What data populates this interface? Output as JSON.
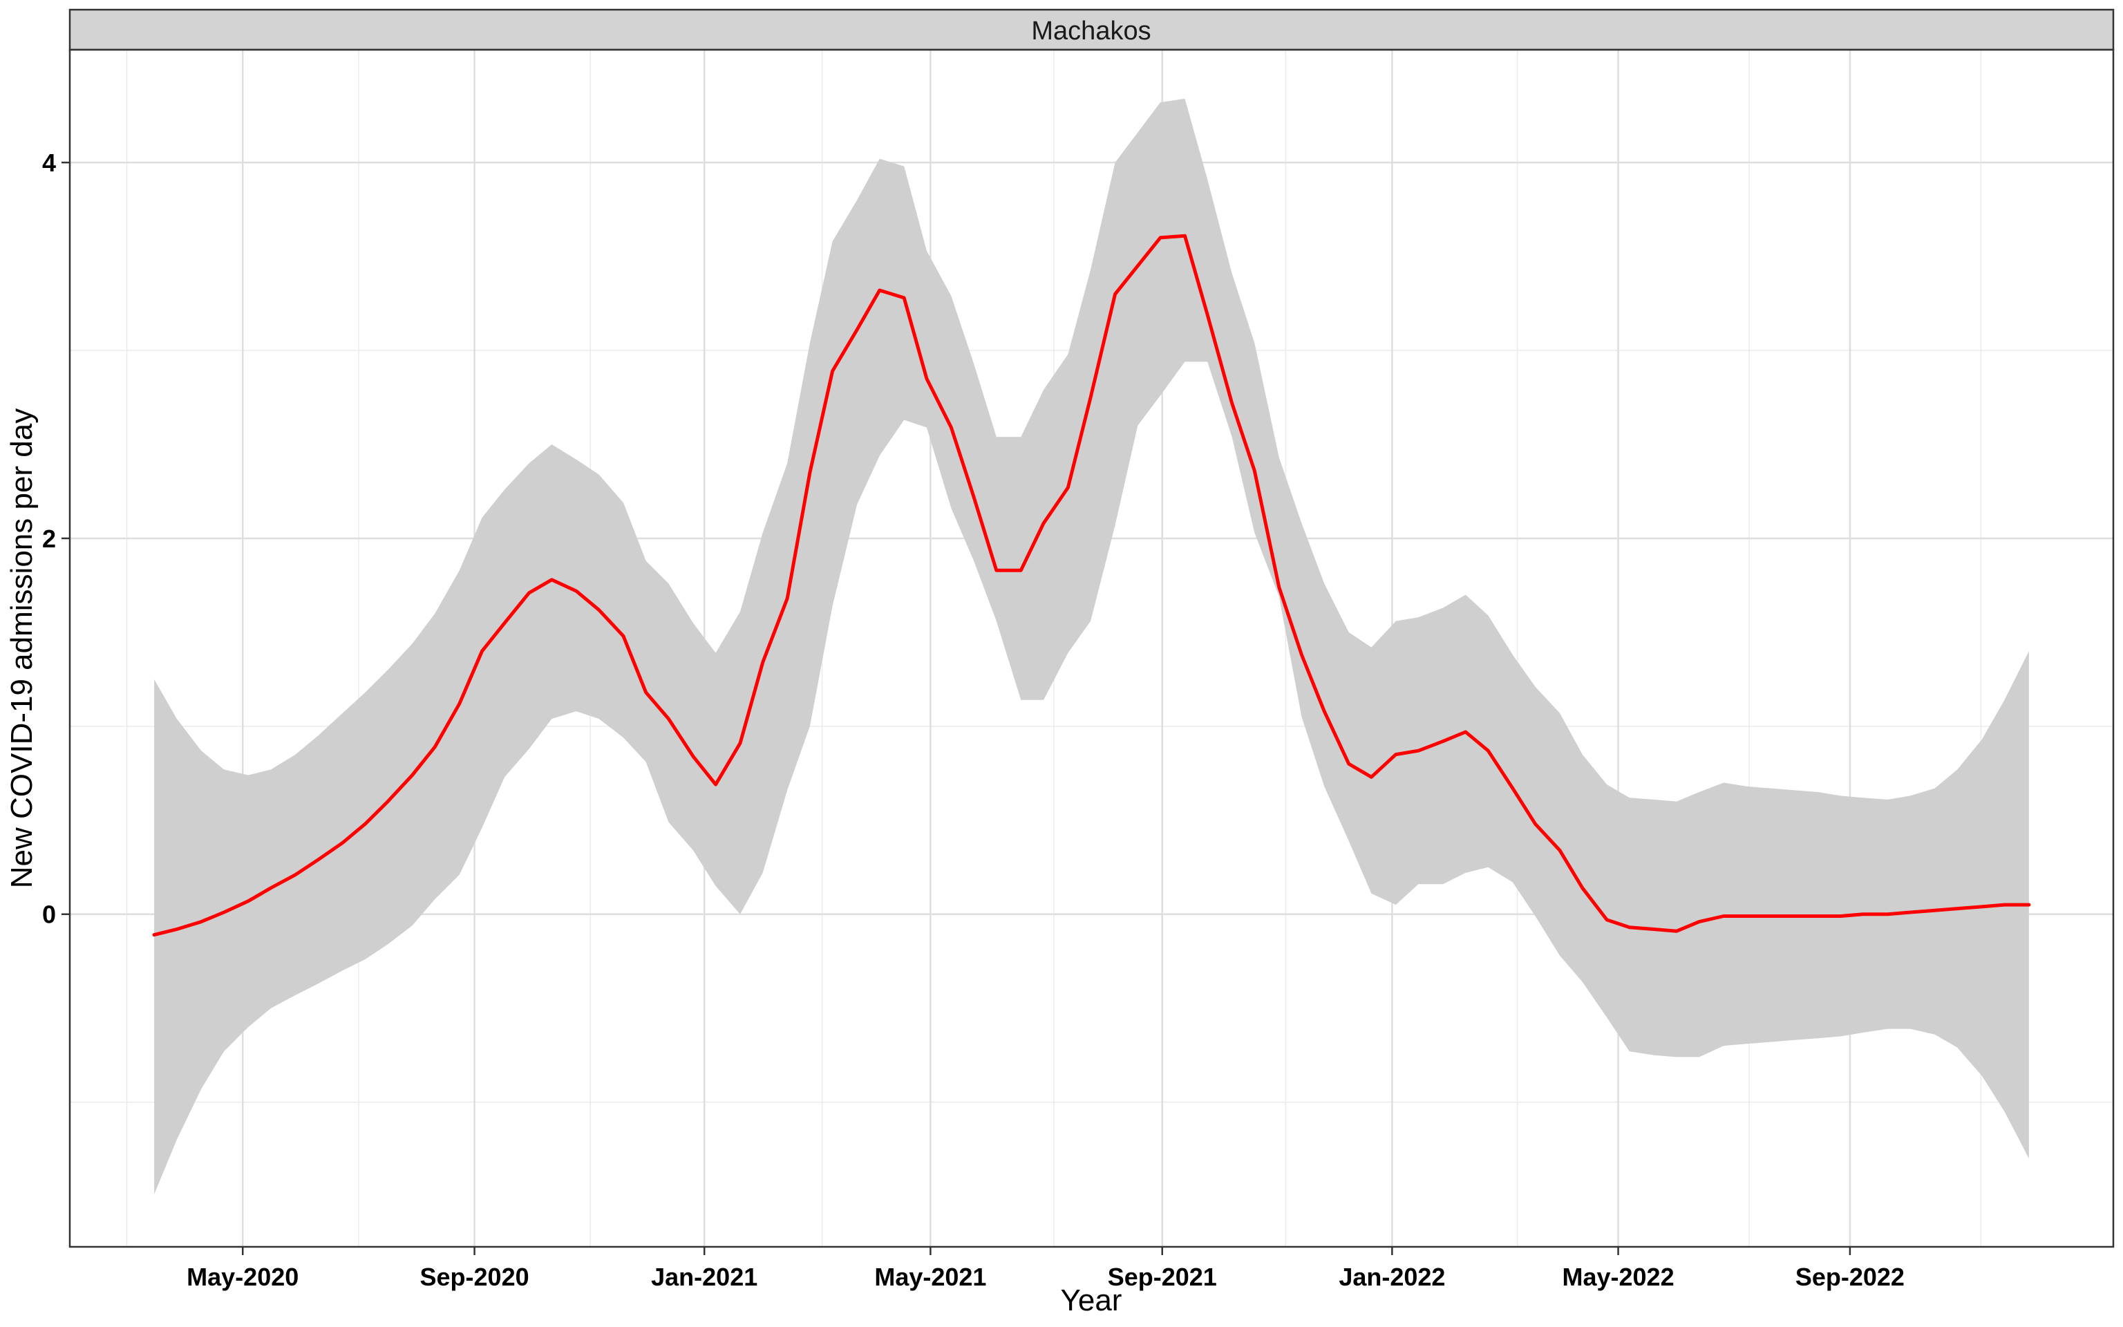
{
  "chart_data": {
    "type": "line",
    "facet_label": "Machakos",
    "xlabel": "Year",
    "ylabel": "New COVID-19 admissions per day",
    "x_ticks": [
      "May-2020",
      "Sep-2020",
      "Jan-2021",
      "May-2021",
      "Sep-2021",
      "Jan-2022",
      "May-2022",
      "Sep-2022"
    ],
    "y_ticks": [
      0,
      2,
      4
    ],
    "ylim": [
      -1.77,
      4.6
    ],
    "grid": true,
    "series": [
      {
        "color": "#ff0000",
        "x": [
          "2020-03-15",
          "2020-03-27",
          "2020-04-09",
          "2020-04-21",
          "2020-05-04",
          "2020-05-16",
          "2020-05-29",
          "2020-06-10",
          "2020-06-23",
          "2020-07-05",
          "2020-07-17",
          "2020-07-30",
          "2020-08-11",
          "2020-08-24",
          "2020-09-05",
          "2020-09-17",
          "2020-09-30",
          "2020-10-12",
          "2020-10-25",
          "2020-11-06",
          "2020-11-19",
          "2020-12-01",
          "2020-12-13",
          "2020-12-26",
          "2021-01-07",
          "2021-01-20",
          "2021-02-01",
          "2021-02-14",
          "2021-02-26",
          "2021-03-10",
          "2021-03-23",
          "2021-04-04",
          "2021-04-17",
          "2021-04-29",
          "2021-05-12",
          "2021-05-24",
          "2021-06-05",
          "2021-06-18",
          "2021-06-30",
          "2021-07-13",
          "2021-07-25",
          "2021-08-07",
          "2021-08-19",
          "2021-08-31",
          "2021-09-13",
          "2021-09-25",
          "2021-10-08",
          "2021-10-20",
          "2021-11-02",
          "2021-11-14",
          "2021-11-26",
          "2021-12-09",
          "2021-12-21",
          "2022-01-03",
          "2022-01-15",
          "2022-01-28",
          "2022-02-09",
          "2022-02-21",
          "2022-03-06",
          "2022-03-18",
          "2022-03-31",
          "2022-04-12",
          "2022-04-25",
          "2022-05-07",
          "2022-05-20",
          "2022-06-01",
          "2022-06-13",
          "2022-06-26",
          "2022-07-08",
          "2022-07-21",
          "2022-08-02",
          "2022-08-15",
          "2022-08-27",
          "2022-09-08",
          "2022-09-21",
          "2022-10-03",
          "2022-10-16",
          "2022-10-28",
          "2022-11-10",
          "2022-11-22",
          "2022-12-05"
        ],
        "y": [
          -0.11,
          -0.08,
          -0.04,
          0.01,
          0.07,
          0.14,
          0.21,
          0.29,
          0.38,
          0.48,
          0.6,
          0.74,
          0.89,
          1.12,
          1.4,
          1.55,
          1.71,
          1.78,
          1.72,
          1.62,
          1.48,
          1.18,
          1.04,
          0.84,
          0.69,
          0.91,
          1.34,
          1.68,
          2.35,
          2.89,
          3.11,
          3.32,
          3.28,
          2.85,
          2.59,
          2.22,
          1.83,
          1.83,
          2.08,
          2.27,
          2.75,
          3.3,
          3.45,
          3.6,
          3.61,
          3.19,
          2.72,
          2.36,
          1.74,
          1.38,
          1.08,
          0.8,
          0.73,
          0.85,
          0.87,
          0.92,
          0.97,
          0.87,
          0.67,
          0.48,
          0.34,
          0.14,
          -0.03,
          -0.07,
          -0.08,
          -0.09,
          -0.04,
          -0.01,
          -0.01,
          -0.01,
          -0.01,
          -0.01,
          -0.01,
          0.0,
          0.0,
          0.01,
          0.02,
          0.03,
          0.04,
          0.05,
          0.05
        ],
        "lower": [
          -1.49,
          -1.2,
          -0.93,
          -0.73,
          -0.6,
          -0.5,
          -0.43,
          -0.37,
          -0.3,
          -0.24,
          -0.16,
          -0.06,
          0.08,
          0.21,
          0.46,
          0.73,
          0.88,
          1.04,
          1.08,
          1.04,
          0.94,
          0.81,
          0.49,
          0.34,
          0.15,
          0.0,
          0.22,
          0.66,
          1.0,
          1.64,
          2.18,
          2.44,
          2.63,
          2.59,
          2.16,
          1.88,
          1.56,
          1.14,
          1.14,
          1.39,
          1.56,
          2.07,
          2.6,
          2.76,
          2.94,
          2.94,
          2.54,
          2.03,
          1.69,
          1.05,
          0.68,
          0.39,
          0.11,
          0.05,
          0.16,
          0.16,
          0.22,
          0.25,
          0.17,
          -0.01,
          -0.22,
          -0.36,
          -0.55,
          -0.73,
          -0.75,
          -0.76,
          -0.76,
          -0.7,
          -0.69,
          -0.68,
          -0.67,
          -0.66,
          -0.65,
          -0.63,
          -0.61,
          -0.61,
          -0.64,
          -0.71,
          -0.86,
          -1.05,
          -1.3
        ],
        "upper": [
          1.25,
          1.04,
          0.87,
          0.77,
          0.74,
          0.77,
          0.85,
          0.95,
          1.07,
          1.18,
          1.3,
          1.44,
          1.6,
          1.83,
          2.11,
          2.26,
          2.4,
          2.5,
          2.42,
          2.34,
          2.19,
          1.88,
          1.76,
          1.55,
          1.39,
          1.61,
          2.03,
          2.4,
          3.04,
          3.58,
          3.8,
          4.02,
          3.98,
          3.53,
          3.29,
          2.93,
          2.54,
          2.54,
          2.79,
          2.98,
          3.43,
          4.0,
          4.16,
          4.32,
          4.34,
          3.91,
          3.41,
          3.04,
          2.43,
          2.08,
          1.76,
          1.5,
          1.42,
          1.56,
          1.58,
          1.63,
          1.7,
          1.59,
          1.38,
          1.21,
          1.07,
          0.85,
          0.69,
          0.62,
          0.61,
          0.6,
          0.65,
          0.7,
          0.68,
          0.67,
          0.66,
          0.65,
          0.63,
          0.62,
          0.61,
          0.63,
          0.67,
          0.77,
          0.93,
          1.14,
          1.4
        ]
      }
    ]
  }
}
